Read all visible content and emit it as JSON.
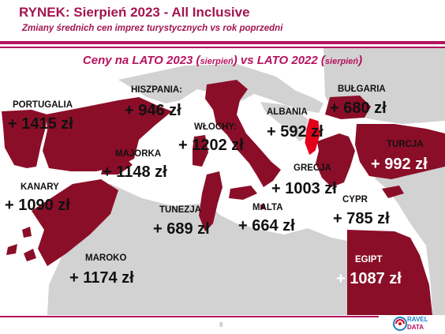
{
  "header": {
    "title": "RYNEK: Sierpień 2023 - All Inclusive",
    "subtitle": "Zmiany średnich cen imprez turystycznych vs rok poprzedni"
  },
  "map_heading": {
    "part1": "Ceny na LATO 2023 (",
    "part1_small": "sierpień",
    "part2": ") vs  LATO 2022 (",
    "part2_small": "sierpień",
    "part3": ")"
  },
  "colors": {
    "accent": "#b5125f",
    "country_fill": "#8b0e28",
    "country_dark": "#6e0a1e",
    "land_gray": "#d2d2d2",
    "albania_red": "#e2001a"
  },
  "countries": [
    {
      "id": "portugalia",
      "name": "PORTUGALIA",
      "value": "+ 1415 zł"
    },
    {
      "id": "hiszpania",
      "name": "HISZPANIA:",
      "value": "+ 946 zł"
    },
    {
      "id": "majorka",
      "name": "MAJORKA",
      "value": "+ 1148 zł"
    },
    {
      "id": "wlochy",
      "name": "WŁOCHY:",
      "value": "+ 1202 zł"
    },
    {
      "id": "albania",
      "name": "ALBANIA",
      "value": "+ 592 zł"
    },
    {
      "id": "bulgaria",
      "name": "BUŁGARIA",
      "value": "+ 680 zł"
    },
    {
      "id": "turcja",
      "name": "TURCJA",
      "value": "+ 992 zł"
    },
    {
      "id": "grecja",
      "name": "GRECJA",
      "value": "+ 1003 zł"
    },
    {
      "id": "kanary",
      "name": "KANARY",
      "value": "+ 1090 zł"
    },
    {
      "id": "tunezja",
      "name": "TUNEZJA",
      "value": "+ 689 zł"
    },
    {
      "id": "malta",
      "name": "MALTA",
      "value": "+ 664 zł"
    },
    {
      "id": "cypr",
      "name": "CYPR",
      "value": "+ 785 zł"
    },
    {
      "id": "maroko",
      "name": "MAROKO",
      "value": "+ 1174 zł"
    },
    {
      "id": "egipt",
      "name": "EGIPT",
      "value": "+ 1087 zł"
    }
  ],
  "footer": {
    "page_number": "8",
    "logo": {
      "icon": "travel-data-logo-icon",
      "line1": "RAVEL",
      "line2": "DATA"
    }
  }
}
